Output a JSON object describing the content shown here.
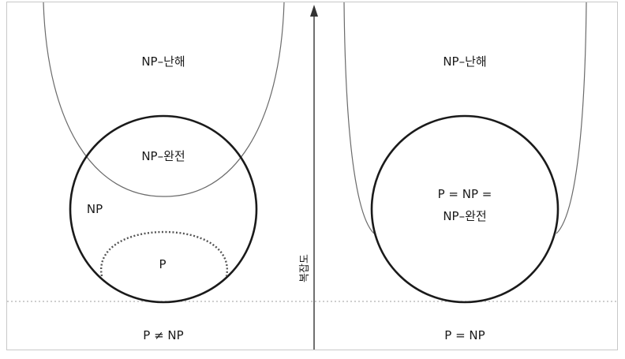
{
  "left_panel": {
    "np_hard_label": "NP–난해",
    "np_complete_label": "NP–완전",
    "np_label": "NP",
    "p_label": "P",
    "caption": "P ≠ NP"
  },
  "right_panel": {
    "np_hard_label": "NP–난해",
    "merged_label_line1": "P = NP =",
    "merged_label_line2": "NP–완전",
    "caption": "P = NP"
  },
  "axis": {
    "label": "복잡도",
    "icon": "arrow-up-icon"
  },
  "colors": {
    "frame": "#c8c8c8",
    "thin_curve": "#6b6b6b",
    "thick_circle": "#1a1a1a",
    "dotted_line": "#b0b0b0",
    "axis": "#333333"
  }
}
